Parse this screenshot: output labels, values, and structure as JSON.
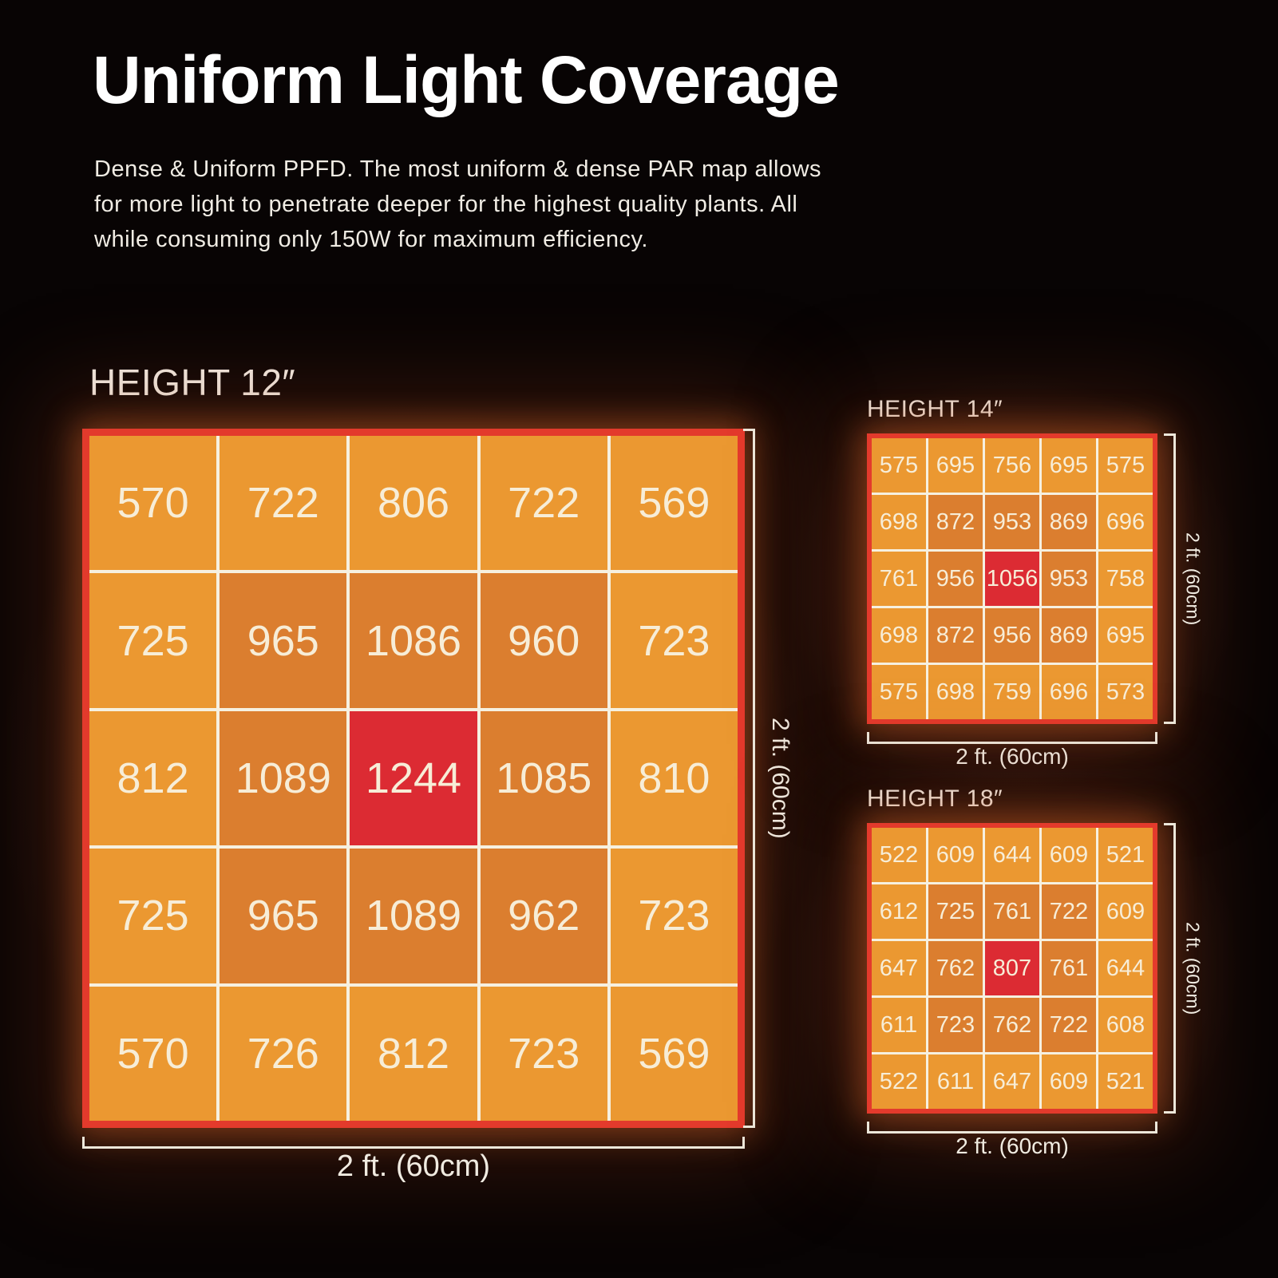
{
  "header": {
    "title": "Uniform Light Coverage",
    "description_lines": [
      "Dense & Uniform PPFD. The most uniform & dense PAR map allows",
      "for more light to penetrate deeper for the highest quality plants.  All",
      "while consuming only 150W for maximum efficiency."
    ]
  },
  "colors": {
    "background": "#080404",
    "cell_low": "#EB9831",
    "cell_mid": "#DB7E2F",
    "cell_peak": "#DC2B33",
    "grid_frame": "#E33A2C",
    "grid_lines": "#F6F0E0",
    "value_text": "#F7EDD7",
    "heading_text": "#FFFFFF",
    "dimension_text": "#F0EBE1"
  },
  "chart_data": [
    {
      "type": "heatmap",
      "title": "HEIGHT 12″",
      "x_label": "2 ft. (60cm)",
      "y_label": "2 ft. (60cm)",
      "rows": 5,
      "cols": 5,
      "mid_threshold": 850,
      "values": [
        [
          570,
          722,
          806,
          722,
          569
        ],
        [
          725,
          965,
          1086,
          960,
          723
        ],
        [
          812,
          1089,
          1244,
          1085,
          810
        ],
        [
          725,
          965,
          1089,
          962,
          723
        ],
        [
          570,
          726,
          812,
          723,
          569
        ]
      ]
    },
    {
      "type": "heatmap",
      "title": "HEIGHT 14″",
      "x_label": "2 ft. (60cm)",
      "y_label": "2 ft. (60cm)",
      "rows": 5,
      "cols": 5,
      "mid_threshold": 850,
      "values": [
        [
          575,
          695,
          756,
          695,
          575
        ],
        [
          698,
          872,
          953,
          869,
          696
        ],
        [
          761,
          956,
          1056,
          953,
          758
        ],
        [
          698,
          872,
          956,
          869,
          695
        ],
        [
          575,
          698,
          759,
          696,
          573
        ]
      ]
    },
    {
      "type": "heatmap",
      "title": "HEIGHT 18″",
      "x_label": "2 ft. (60cm)",
      "y_label": "2 ft. (60cm)",
      "rows": 5,
      "cols": 5,
      "mid_threshold": 700,
      "values": [
        [
          522,
          609,
          644,
          609,
          521
        ],
        [
          612,
          725,
          761,
          722,
          609
        ],
        [
          647,
          762,
          807,
          761,
          644
        ],
        [
          611,
          723,
          762,
          722,
          608
        ],
        [
          522,
          611,
          647,
          609,
          521
        ]
      ]
    }
  ]
}
